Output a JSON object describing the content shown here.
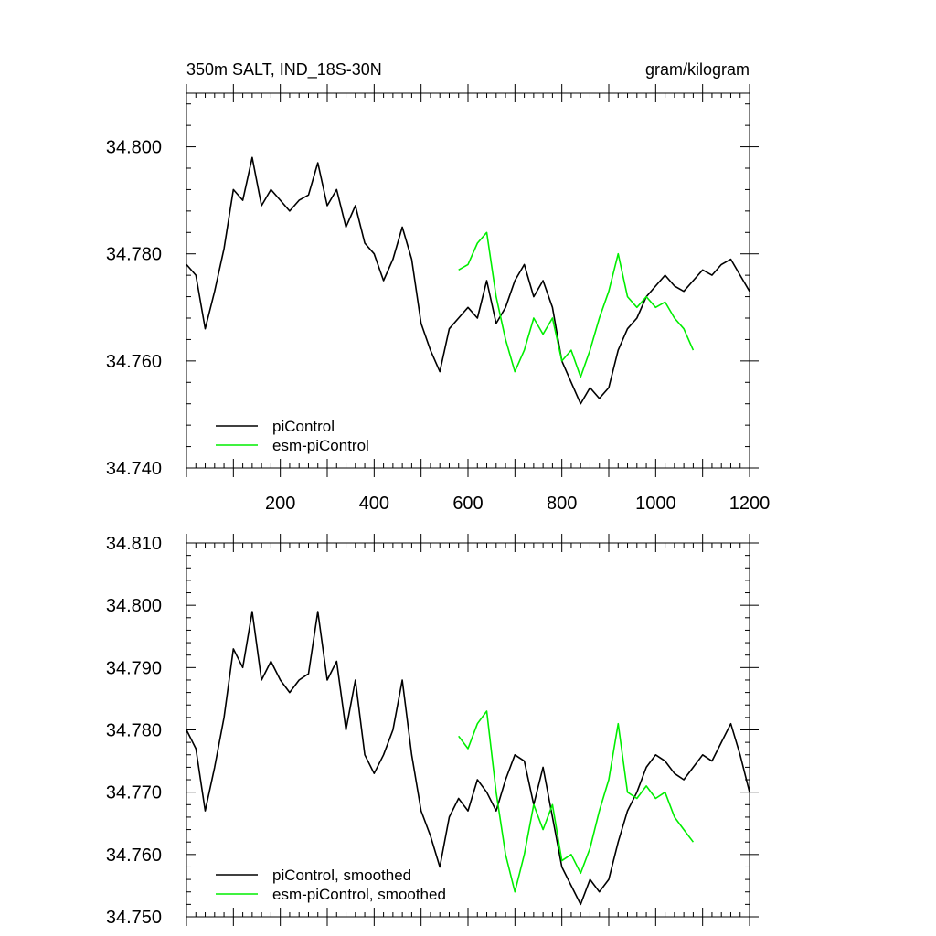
{
  "header": {
    "left_title": "350m SALT, IND_18S-30N",
    "right_title": "gram/kilogram"
  },
  "colors": {
    "piControl": "#000000",
    "esm_piControl": "#00ee00"
  },
  "chart_data": [
    {
      "type": "line",
      "title": "350m SALT, IND_18S-30N",
      "units": "gram/kilogram",
      "xlim": [
        0,
        1200
      ],
      "ylim": [
        34.74,
        34.81
      ],
      "x_ticks": [
        "200",
        "400",
        "600",
        "800",
        "1000",
        "1200"
      ],
      "y_ticks": [
        "34.740",
        "34.760",
        "34.780",
        "34.800"
      ],
      "legend": [
        "piControl",
        "esm-piControl"
      ],
      "legend_position": "bottom-left",
      "series": [
        {
          "name": "piControl",
          "color": "#000000",
          "x": [
            0,
            20,
            40,
            60,
            80,
            100,
            120,
            140,
            160,
            180,
            200,
            220,
            240,
            260,
            280,
            300,
            320,
            340,
            360,
            380,
            400,
            420,
            440,
            460,
            480,
            500,
            520,
            540,
            560,
            580,
            600,
            620,
            640,
            660,
            680,
            700,
            720,
            740,
            760,
            780,
            800,
            820,
            840,
            860,
            880,
            900,
            920,
            940,
            960,
            980,
            1000,
            1020,
            1040,
            1060,
            1080,
            1100,
            1120,
            1140,
            1160,
            1180,
            1200
          ],
          "y": [
            34.778,
            34.776,
            34.766,
            34.773,
            34.781,
            34.792,
            34.79,
            34.798,
            34.789,
            34.792,
            34.79,
            34.788,
            34.79,
            34.791,
            34.797,
            34.789,
            34.792,
            34.785,
            34.789,
            34.782,
            34.78,
            34.775,
            34.779,
            34.785,
            34.779,
            34.767,
            34.762,
            34.758,
            34.766,
            34.768,
            34.77,
            34.768,
            34.775,
            34.767,
            34.77,
            34.775,
            34.778,
            34.772,
            34.775,
            34.77,
            34.76,
            34.756,
            34.752,
            34.755,
            34.753,
            34.755,
            34.762,
            34.766,
            34.768,
            34.772,
            34.774,
            34.776,
            34.774,
            34.773,
            34.775,
            34.777,
            34.776,
            34.778,
            34.779,
            34.776,
            34.773
          ]
        },
        {
          "name": "esm-piControl",
          "color": "#00ee00",
          "x": [
            580,
            600,
            620,
            640,
            660,
            680,
            700,
            720,
            740,
            760,
            780,
            800,
            820,
            840,
            860,
            880,
            900,
            920,
            940,
            960,
            980,
            1000,
            1020,
            1040,
            1060,
            1080
          ],
          "y": [
            34.777,
            34.778,
            34.782,
            34.784,
            34.772,
            34.764,
            34.758,
            34.762,
            34.768,
            34.765,
            34.768,
            34.76,
            34.762,
            34.757,
            34.762,
            34.768,
            34.773,
            34.78,
            34.772,
            34.77,
            34.772,
            34.77,
            34.771,
            34.768,
            34.766,
            34.762
          ]
        }
      ]
    },
    {
      "type": "line",
      "xlim": [
        0,
        1200
      ],
      "ylim": [
        34.75,
        34.81
      ],
      "y_ticks": [
        "34.750",
        "34.760",
        "34.770",
        "34.780",
        "34.790",
        "34.800",
        "34.810"
      ],
      "legend": [
        "piControl, smoothed",
        "esm-piControl, smoothed"
      ],
      "legend_position": "bottom-left",
      "series": [
        {
          "name": "piControl, smoothed",
          "color": "#000000",
          "x": [
            0,
            20,
            40,
            60,
            80,
            100,
            120,
            140,
            160,
            180,
            200,
            220,
            240,
            260,
            280,
            300,
            320,
            340,
            360,
            380,
            400,
            420,
            440,
            460,
            480,
            500,
            520,
            540,
            560,
            580,
            600,
            620,
            640,
            660,
            680,
            700,
            720,
            740,
            760,
            780,
            800,
            820,
            840,
            860,
            880,
            900,
            920,
            940,
            960,
            980,
            1000,
            1020,
            1040,
            1060,
            1080,
            1100,
            1120,
            1140,
            1160,
            1180,
            1200
          ],
          "y": [
            34.78,
            34.777,
            34.767,
            34.774,
            34.782,
            34.793,
            34.79,
            34.799,
            34.788,
            34.791,
            34.788,
            34.786,
            34.788,
            34.789,
            34.799,
            34.788,
            34.791,
            34.78,
            34.788,
            34.776,
            34.773,
            34.776,
            34.78,
            34.788,
            34.776,
            34.767,
            34.763,
            34.758,
            34.766,
            34.769,
            34.767,
            34.772,
            34.77,
            34.767,
            34.772,
            34.776,
            34.775,
            34.768,
            34.774,
            34.766,
            34.758,
            34.755,
            34.752,
            34.756,
            34.754,
            34.756,
            34.762,
            34.767,
            34.77,
            34.774,
            34.776,
            34.775,
            34.773,
            34.772,
            34.774,
            34.776,
            34.775,
            34.778,
            34.781,
            34.776,
            34.77
          ]
        },
        {
          "name": "esm-piControl, smoothed",
          "color": "#00ee00",
          "x": [
            580,
            600,
            620,
            640,
            660,
            680,
            700,
            720,
            740,
            760,
            780,
            800,
            820,
            840,
            860,
            880,
            900,
            920,
            940,
            960,
            980,
            1000,
            1020,
            1040,
            1060,
            1080
          ],
          "y": [
            34.779,
            34.777,
            34.781,
            34.783,
            34.77,
            34.76,
            34.754,
            34.76,
            34.768,
            34.764,
            34.768,
            34.759,
            34.76,
            34.757,
            34.761,
            34.767,
            34.772,
            34.781,
            34.77,
            34.769,
            34.771,
            34.769,
            34.77,
            34.766,
            34.764,
            34.762
          ]
        }
      ]
    }
  ]
}
